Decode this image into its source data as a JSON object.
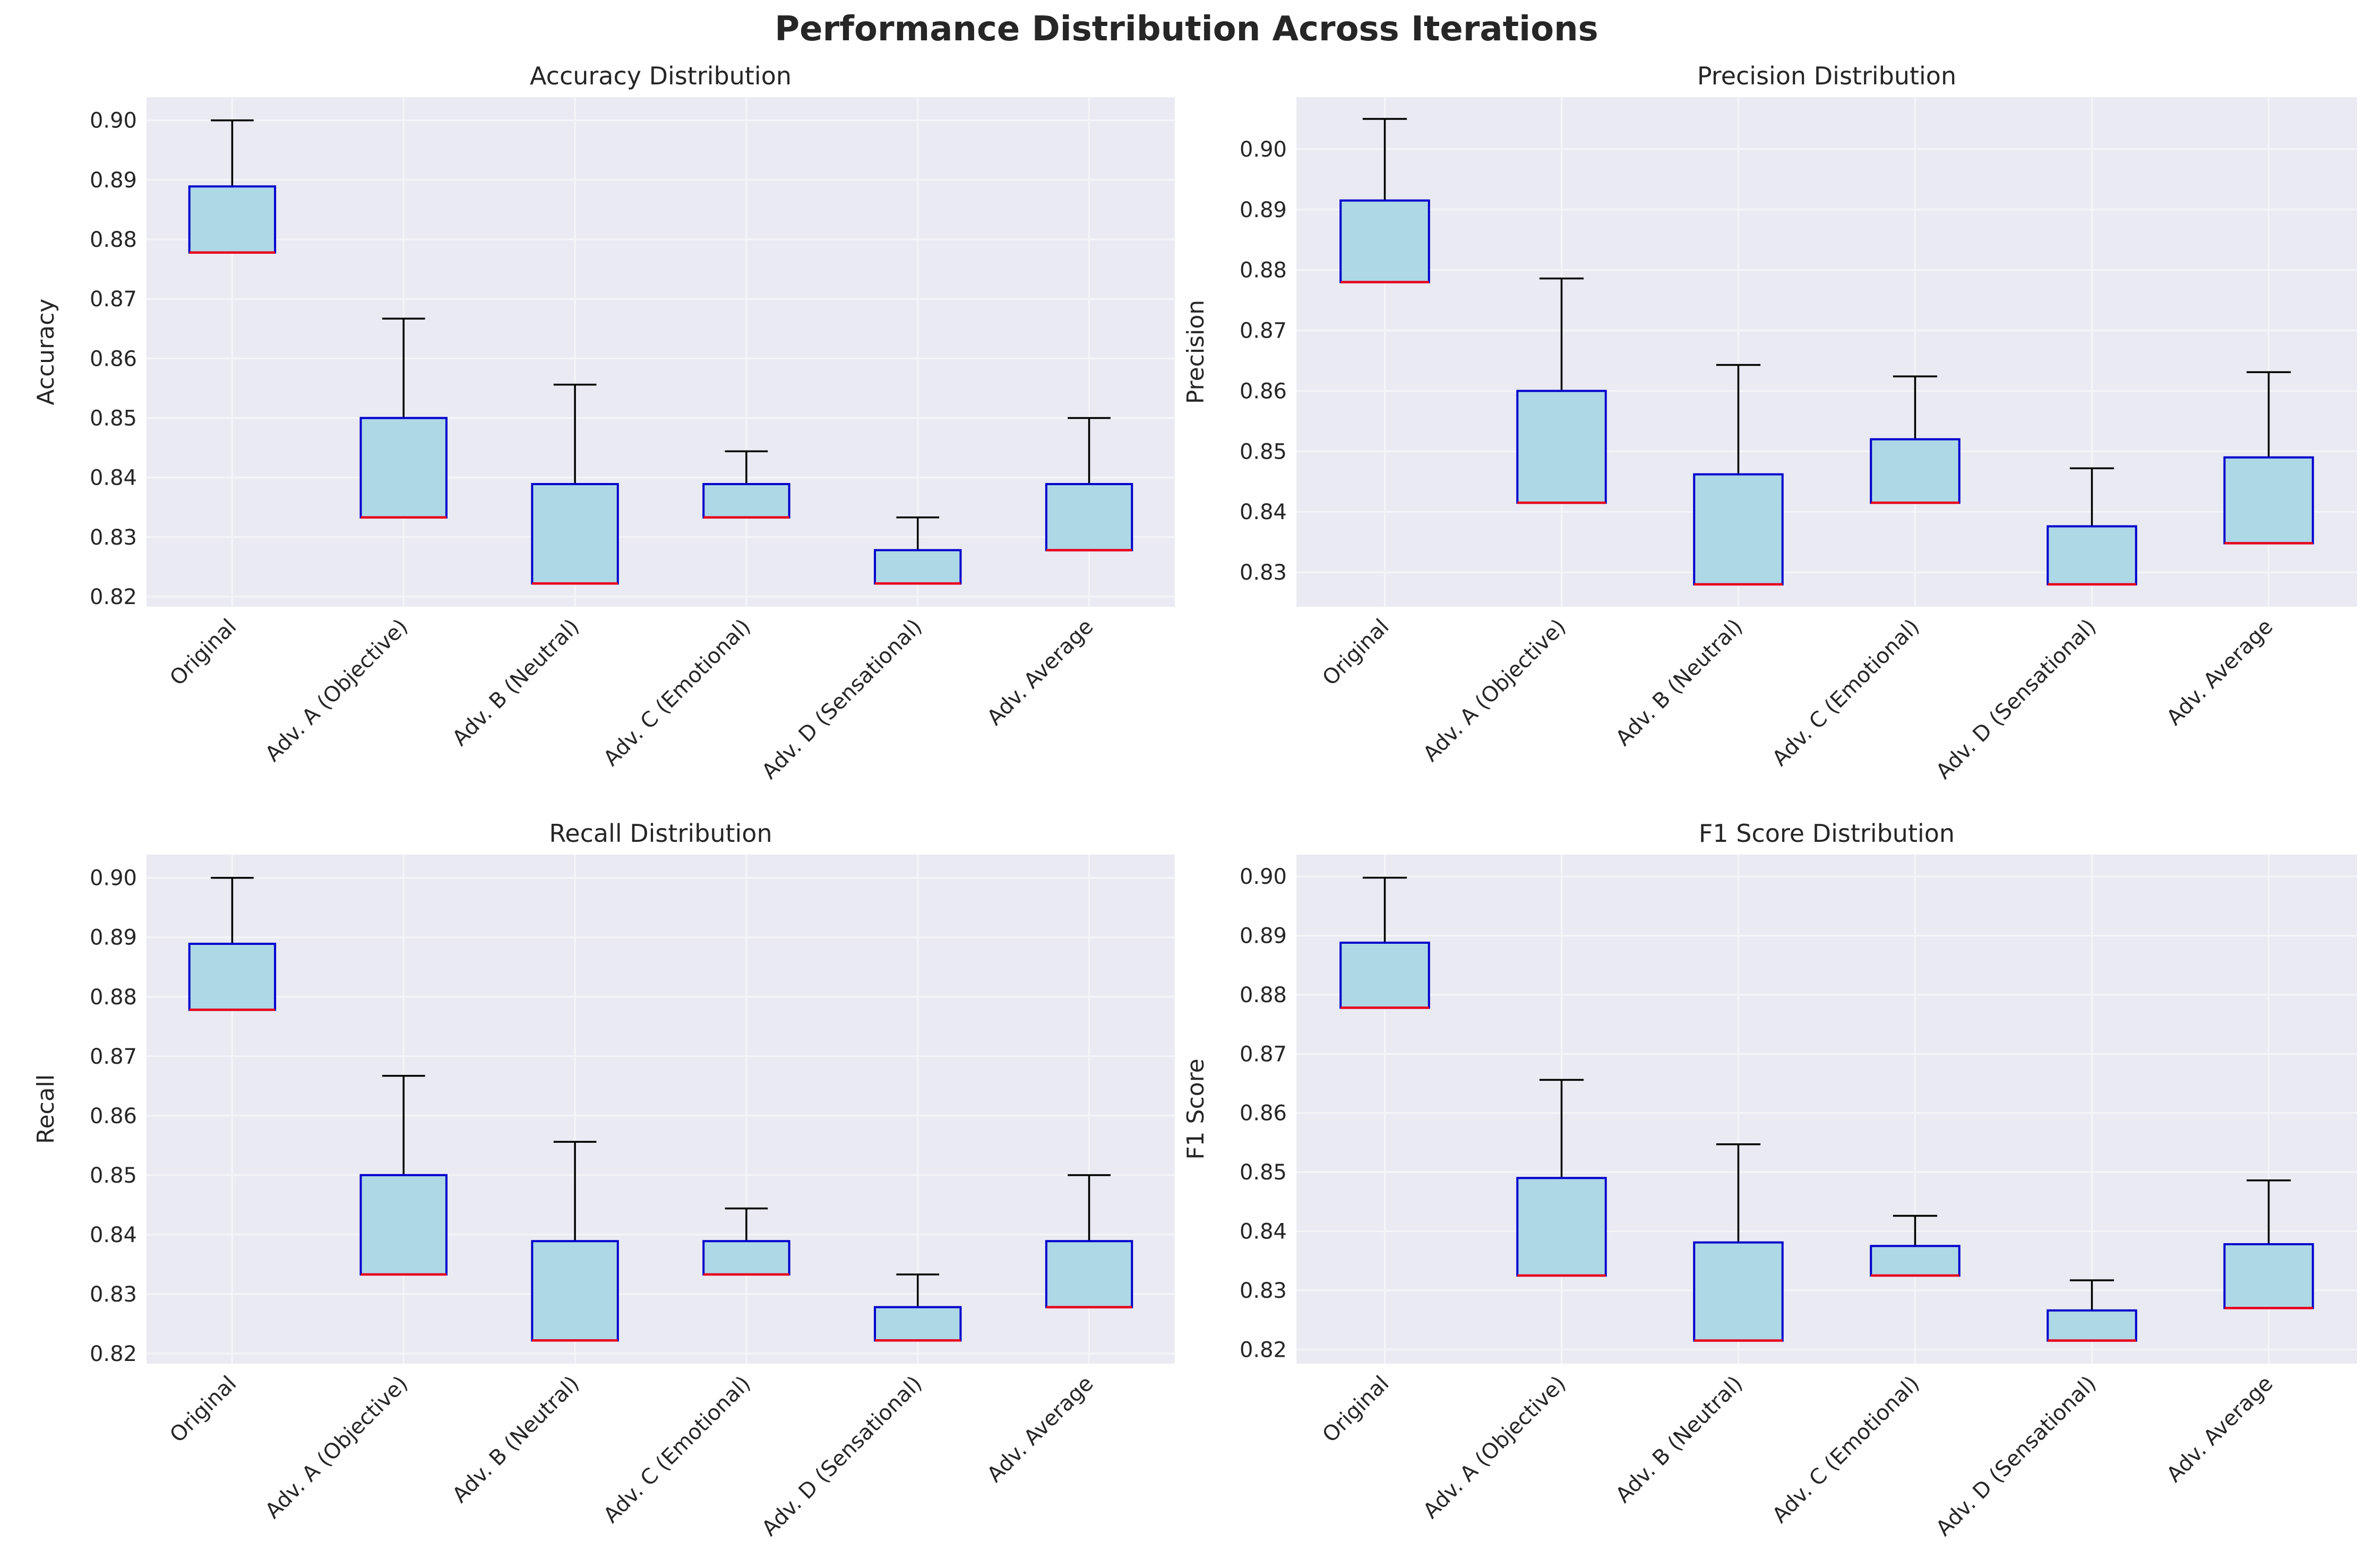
{
  "figure": {
    "title": "Performance Distribution Across Iterations"
  },
  "chart_data": [
    {
      "type": "box",
      "title": "Accuracy Distribution",
      "ylabel": "Accuracy",
      "categories": [
        "Original",
        "Adv. A (Objective)",
        "Adv. B (Neutral)",
        "Adv. C (Emotional)",
        "Adv. D (Sensational)",
        "Adv. Average"
      ],
      "boxes": [
        {
          "min": 0.8778,
          "q1": 0.8778,
          "median": 0.8778,
          "q3": 0.8889,
          "max": 0.9
        },
        {
          "min": 0.8333,
          "q1": 0.8333,
          "median": 0.8333,
          "q3": 0.85,
          "max": 0.8667
        },
        {
          "min": 0.8222,
          "q1": 0.8222,
          "median": 0.8222,
          "q3": 0.8389,
          "max": 0.8556
        },
        {
          "min": 0.8333,
          "q1": 0.8333,
          "median": 0.8333,
          "q3": 0.8389,
          "max": 0.8444
        },
        {
          "min": 0.8222,
          "q1": 0.8222,
          "median": 0.8222,
          "q3": 0.8278,
          "max": 0.8333
        },
        {
          "min": 0.8278,
          "q1": 0.8278,
          "median": 0.8278,
          "q3": 0.8389,
          "max": 0.85
        }
      ],
      "ylim": [
        0.8183,
        0.9039
      ],
      "yticks": [
        "0.82",
        "0.83",
        "0.84",
        "0.85",
        "0.86",
        "0.87",
        "0.88",
        "0.89",
        "0.90"
      ],
      "grid": true
    },
    {
      "type": "box",
      "title": "Precision Distribution",
      "ylabel": "Precision",
      "categories": [
        "Original",
        "Adv. A (Objective)",
        "Adv. B (Neutral)",
        "Adv. C (Emotional)",
        "Adv. D (Sensational)",
        "Adv. Average"
      ],
      "boxes": [
        {
          "min": 0.878,
          "q1": 0.878,
          "median": 0.878,
          "q3": 0.8915,
          "max": 0.905
        },
        {
          "min": 0.8415,
          "q1": 0.8415,
          "median": 0.8415,
          "q3": 0.86,
          "max": 0.8786
        },
        {
          "min": 0.828,
          "q1": 0.828,
          "median": 0.828,
          "q3": 0.8462,
          "max": 0.8643
        },
        {
          "min": 0.8415,
          "q1": 0.8415,
          "median": 0.8415,
          "q3": 0.852,
          "max": 0.8624
        },
        {
          "min": 0.828,
          "q1": 0.828,
          "median": 0.828,
          "q3": 0.8376,
          "max": 0.8472
        },
        {
          "min": 0.8348,
          "q1": 0.8348,
          "median": 0.8348,
          "q3": 0.849,
          "max": 0.8631
        }
      ],
      "ylim": [
        0.8243,
        0.9086
      ],
      "yticks": [
        "0.83",
        "0.84",
        "0.85",
        "0.86",
        "0.87",
        "0.88",
        "0.89",
        "0.90"
      ],
      "grid": true
    },
    {
      "type": "box",
      "title": "Recall Distribution",
      "ylabel": "Recall",
      "categories": [
        "Original",
        "Adv. A (Objective)",
        "Adv. B (Neutral)",
        "Adv. C (Emotional)",
        "Adv. D (Sensational)",
        "Adv. Average"
      ],
      "boxes": [
        {
          "min": 0.8778,
          "q1": 0.8778,
          "median": 0.8778,
          "q3": 0.8889,
          "max": 0.9
        },
        {
          "min": 0.8333,
          "q1": 0.8333,
          "median": 0.8333,
          "q3": 0.85,
          "max": 0.8667
        },
        {
          "min": 0.8222,
          "q1": 0.8222,
          "median": 0.8222,
          "q3": 0.8389,
          "max": 0.8556
        },
        {
          "min": 0.8333,
          "q1": 0.8333,
          "median": 0.8333,
          "q3": 0.8389,
          "max": 0.8444
        },
        {
          "min": 0.8222,
          "q1": 0.8222,
          "median": 0.8222,
          "q3": 0.8278,
          "max": 0.8333
        },
        {
          "min": 0.8278,
          "q1": 0.8278,
          "median": 0.8278,
          "q3": 0.8389,
          "max": 0.85
        }
      ],
      "ylim": [
        0.8183,
        0.9039
      ],
      "yticks": [
        "0.82",
        "0.83",
        "0.84",
        "0.85",
        "0.86",
        "0.87",
        "0.88",
        "0.89",
        "0.90"
      ],
      "grid": true
    },
    {
      "type": "box",
      "title": "F1 Score Distribution",
      "ylabel": "F1 Score",
      "categories": [
        "Original",
        "Adv. A (Objective)",
        "Adv. B (Neutral)",
        "Adv. C (Emotional)",
        "Adv. D (Sensational)",
        "Adv. Average"
      ],
      "boxes": [
        {
          "min": 0.8778,
          "q1": 0.8778,
          "median": 0.8778,
          "q3": 0.8888,
          "max": 0.8998
        },
        {
          "min": 0.8325,
          "q1": 0.8325,
          "median": 0.8325,
          "q3": 0.849,
          "max": 0.8656
        },
        {
          "min": 0.8215,
          "q1": 0.8215,
          "median": 0.8215,
          "q3": 0.8381,
          "max": 0.8547
        },
        {
          "min": 0.8325,
          "q1": 0.8325,
          "median": 0.8325,
          "q3": 0.8375,
          "max": 0.8426
        },
        {
          "min": 0.8215,
          "q1": 0.8215,
          "median": 0.8215,
          "q3": 0.8266,
          "max": 0.8317
        },
        {
          "min": 0.827,
          "q1": 0.827,
          "median": 0.827,
          "q3": 0.8378,
          "max": 0.8486
        }
      ],
      "ylim": [
        0.8176,
        0.9037
      ],
      "yticks": [
        "0.82",
        "0.83",
        "0.84",
        "0.85",
        "0.86",
        "0.87",
        "0.88",
        "0.89",
        "0.90"
      ],
      "grid": true
    }
  ],
  "colors": {
    "box_fill": "#add8e6",
    "box_edge": "#0000cd",
    "median": "#e8001c",
    "whisker": "#000000",
    "axes_bg": "#eaeaf2",
    "grid": "#f5f5f9",
    "text": "#262626"
  }
}
